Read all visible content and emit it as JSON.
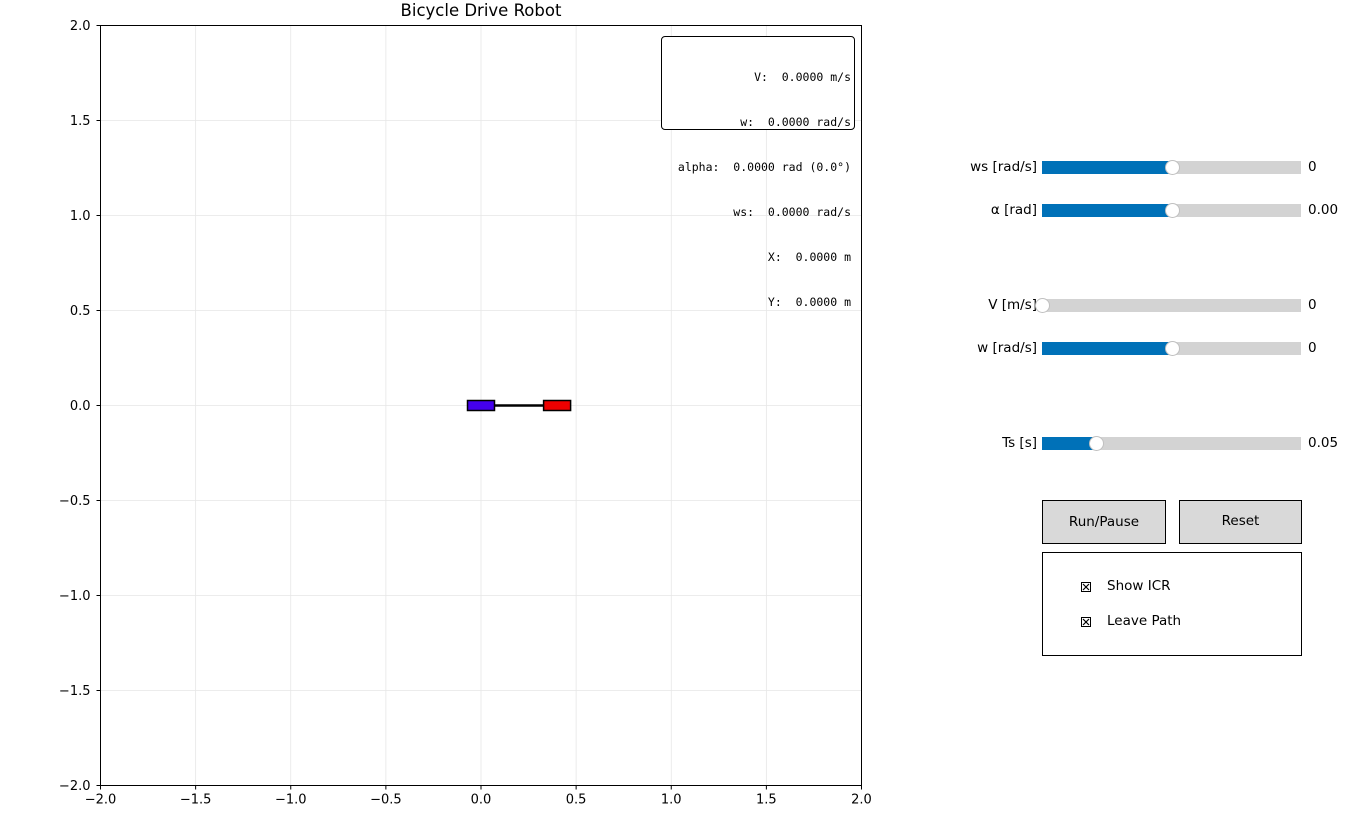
{
  "plot": {
    "title": "Bicycle Drive Robot",
    "xlim": [
      -2.0,
      2.0
    ],
    "ylim": [
      -2.0,
      2.0
    ],
    "x_ticks": [
      "−2.0",
      "−1.5",
      "−1.0",
      "−0.5",
      "0.0",
      "0.5",
      "1.0",
      "1.5",
      "2.0"
    ],
    "y_ticks": [
      "2.0",
      "1.5",
      "1.0",
      "0.5",
      "0.0",
      "−0.5",
      "−1.0",
      "−1.5",
      "−2.0"
    ],
    "grid": true,
    "robot": {
      "rear_wheel_center": [
        0.0,
        0.0
      ],
      "front_wheel_center": [
        0.4,
        0.0
      ],
      "rear_wheel_color": "#4400ee",
      "front_wheel_color": "#ee0000"
    }
  },
  "info": {
    "line1": "V:  0.0000 m/s",
    "line2": "w:  0.0000 rad/s",
    "line3": "alpha:  0.0000 rad (0.0°)",
    "line4": "ws:  0.0000 rad/s",
    "line5": "X:  0.0000 m",
    "line6": "Y:  0.0000 m"
  },
  "controls": {
    "sliders": [
      {
        "label": "ws [rad/s]",
        "value": "0",
        "fraction": 0.5
      },
      {
        "label": "α [rad]",
        "value": "0.00",
        "fraction": 0.5
      },
      {
        "label": "V [m/s]",
        "value": "0",
        "fraction": 0.0
      },
      {
        "label": "w [rad/s]",
        "value": "0",
        "fraction": 0.5
      },
      {
        "label": "Ts [s]",
        "value": "0.05",
        "fraction": 0.21
      }
    ],
    "run_pause_label": "Run/Pause",
    "reset_label": "Reset",
    "checkboxes": [
      {
        "label": "Show ICR",
        "checked": true
      },
      {
        "label": "Leave Path",
        "checked": true
      }
    ]
  },
  "colors": {
    "slider_fill": "#0071b8",
    "slider_track": "#d3d3d3",
    "button_bg": "#d9d9d9",
    "grid": "#e6e6e6"
  }
}
